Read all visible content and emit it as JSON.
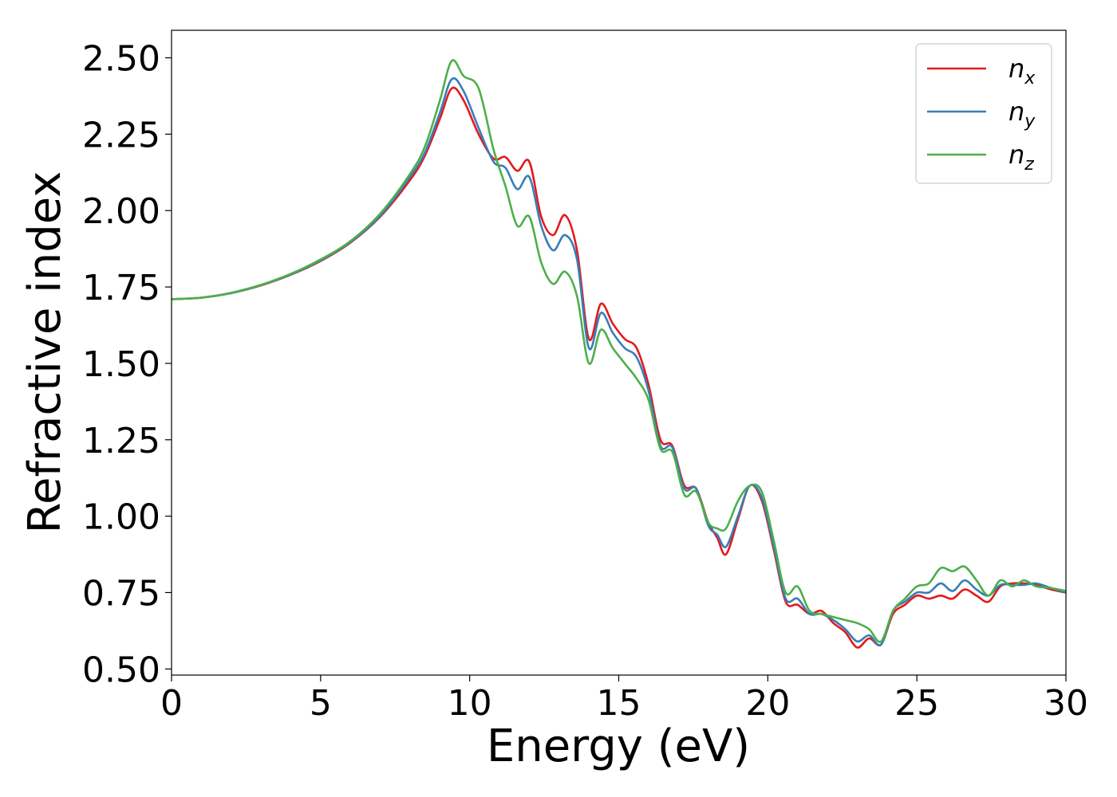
{
  "chart_data": {
    "type": "line",
    "xlabel": "Energy (eV)",
    "ylabel": "Refractive index",
    "xlim": [
      0,
      30
    ],
    "ylim": [
      0.48,
      2.59
    ],
    "xticks": [
      0,
      5,
      10,
      15,
      20,
      25,
      30
    ],
    "xtick_labels": [
      "0",
      "5",
      "10",
      "15",
      "20",
      "25",
      "30"
    ],
    "yticks": [
      0.5,
      0.75,
      1.0,
      1.25,
      1.5,
      1.75,
      2.0,
      2.25,
      2.5
    ],
    "ytick_labels": [
      "0.50",
      "0.75",
      "1.00",
      "1.25",
      "1.50",
      "1.75",
      "2.00",
      "2.25",
      "2.50"
    ],
    "grid": false,
    "legend_position": "top-right",
    "x": [
      0,
      1,
      2,
      3,
      4,
      5,
      6,
      7,
      8,
      8.5,
      9,
      9.4,
      9.8,
      10.3,
      10.8,
      11.2,
      11.6,
      12.0,
      12.4,
      12.8,
      13.2,
      13.6,
      14.0,
      14.4,
      14.8,
      15.2,
      15.6,
      16.0,
      16.4,
      16.8,
      17.2,
      17.6,
      18.0,
      18.3,
      18.6,
      19.0,
      19.4,
      19.8,
      20.2,
      20.6,
      21.0,
      21.4,
      21.8,
      22.2,
      22.6,
      23.0,
      23.4,
      23.8,
      24.2,
      24.6,
      25.0,
      25.4,
      25.8,
      26.2,
      26.6,
      27.0,
      27.4,
      27.8,
      28.2,
      28.6,
      29.0,
      29.5,
      30.0
    ],
    "series": [
      {
        "name": "n_x",
        "label_base": "n",
        "label_sub": "x",
        "color": "#e41a1c",
        "values": [
          1.71,
          1.715,
          1.73,
          1.755,
          1.79,
          1.835,
          1.895,
          1.98,
          2.1,
          2.18,
          2.3,
          2.4,
          2.36,
          2.25,
          2.17,
          2.175,
          2.13,
          2.16,
          1.98,
          1.92,
          1.985,
          1.87,
          1.58,
          1.695,
          1.63,
          1.58,
          1.55,
          1.43,
          1.25,
          1.23,
          1.1,
          1.09,
          0.98,
          0.93,
          0.875,
          0.99,
          1.1,
          1.05,
          0.89,
          0.72,
          0.71,
          0.68,
          0.69,
          0.65,
          0.62,
          0.57,
          0.6,
          0.58,
          0.68,
          0.71,
          0.74,
          0.73,
          0.74,
          0.73,
          0.76,
          0.74,
          0.72,
          0.77,
          0.78,
          0.78,
          0.775,
          0.76,
          0.75
        ]
      },
      {
        "name": "n_y",
        "label_base": "n",
        "label_sub": "y",
        "color": "#377eb8",
        "values": [
          1.71,
          1.715,
          1.73,
          1.756,
          1.791,
          1.837,
          1.897,
          1.983,
          2.11,
          2.19,
          2.32,
          2.43,
          2.39,
          2.27,
          2.16,
          2.14,
          2.07,
          2.11,
          1.95,
          1.87,
          1.92,
          1.84,
          1.55,
          1.665,
          1.6,
          1.55,
          1.52,
          1.41,
          1.23,
          1.225,
          1.09,
          1.09,
          0.97,
          0.94,
          0.9,
          1.0,
          1.1,
          1.06,
          0.9,
          0.73,
          0.73,
          0.68,
          0.68,
          0.66,
          0.63,
          0.59,
          0.61,
          0.58,
          0.69,
          0.72,
          0.75,
          0.75,
          0.78,
          0.755,
          0.79,
          0.76,
          0.74,
          0.775,
          0.775,
          0.775,
          0.78,
          0.765,
          0.75
        ]
      },
      {
        "name": "n_z",
        "label_base": "n",
        "label_sub": "z",
        "color": "#4daf4a",
        "values": [
          1.71,
          1.715,
          1.731,
          1.757,
          1.793,
          1.84,
          1.9,
          1.99,
          2.12,
          2.21,
          2.36,
          2.49,
          2.44,
          2.4,
          2.2,
          2.08,
          1.95,
          1.98,
          1.83,
          1.76,
          1.8,
          1.72,
          1.5,
          1.61,
          1.55,
          1.5,
          1.45,
          1.38,
          1.22,
          1.21,
          1.07,
          1.08,
          0.98,
          0.96,
          0.96,
          1.05,
          1.1,
          1.08,
          0.92,
          0.75,
          0.77,
          0.69,
          0.68,
          0.67,
          0.66,
          0.65,
          0.63,
          0.59,
          0.69,
          0.73,
          0.77,
          0.78,
          0.83,
          0.82,
          0.835,
          0.79,
          0.74,
          0.79,
          0.77,
          0.79,
          0.77,
          0.765,
          0.755
        ]
      }
    ]
  }
}
